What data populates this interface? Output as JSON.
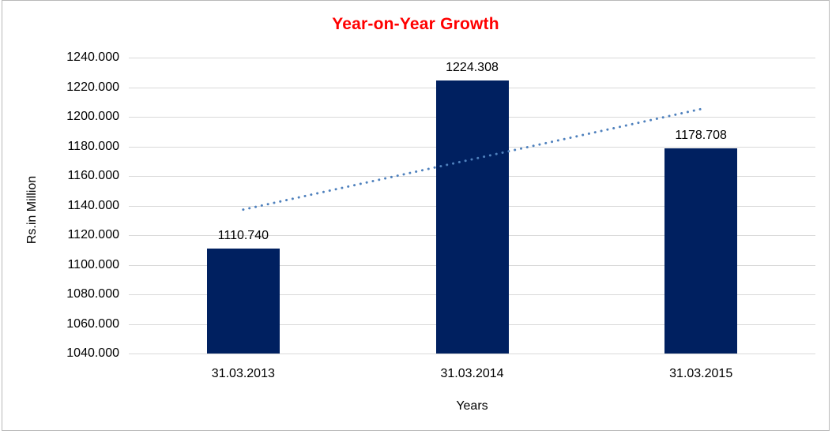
{
  "window": {
    "background": "#FFFFFF",
    "border_color": "#B9B9B9"
  },
  "chart_data": {
    "type": "bar",
    "title": "Year-on-Year Growth",
    "title_color": "#FF0000",
    "categories": [
      "31.03.2013",
      "31.03.2014",
      "31.03.2015"
    ],
    "values": [
      1110.74,
      1224.308,
      1178.708
    ],
    "data_labels": [
      "1110.740",
      "1224.308",
      "1178.708"
    ],
    "xlabel": "Years",
    "ylabel": "Rs.in Million",
    "ylim": [
      1040,
      1240
    ],
    "ytick_step": 20,
    "ytick_labels": [
      "1240.000",
      "1220.000",
      "1200.000",
      "1180.000",
      "1160.000",
      "1140.000",
      "1120.000",
      "1100.000",
      "1080.000",
      "1060.000",
      "1040.000"
    ],
    "grid": true,
    "gridline_color": "#D9D9D9",
    "bar_color": "#002060",
    "legend": "none",
    "trendline": {
      "style": "dotted",
      "color": "#4F81BD",
      "endpoint_values": [
        1137.268,
        1205.236
      ]
    }
  }
}
